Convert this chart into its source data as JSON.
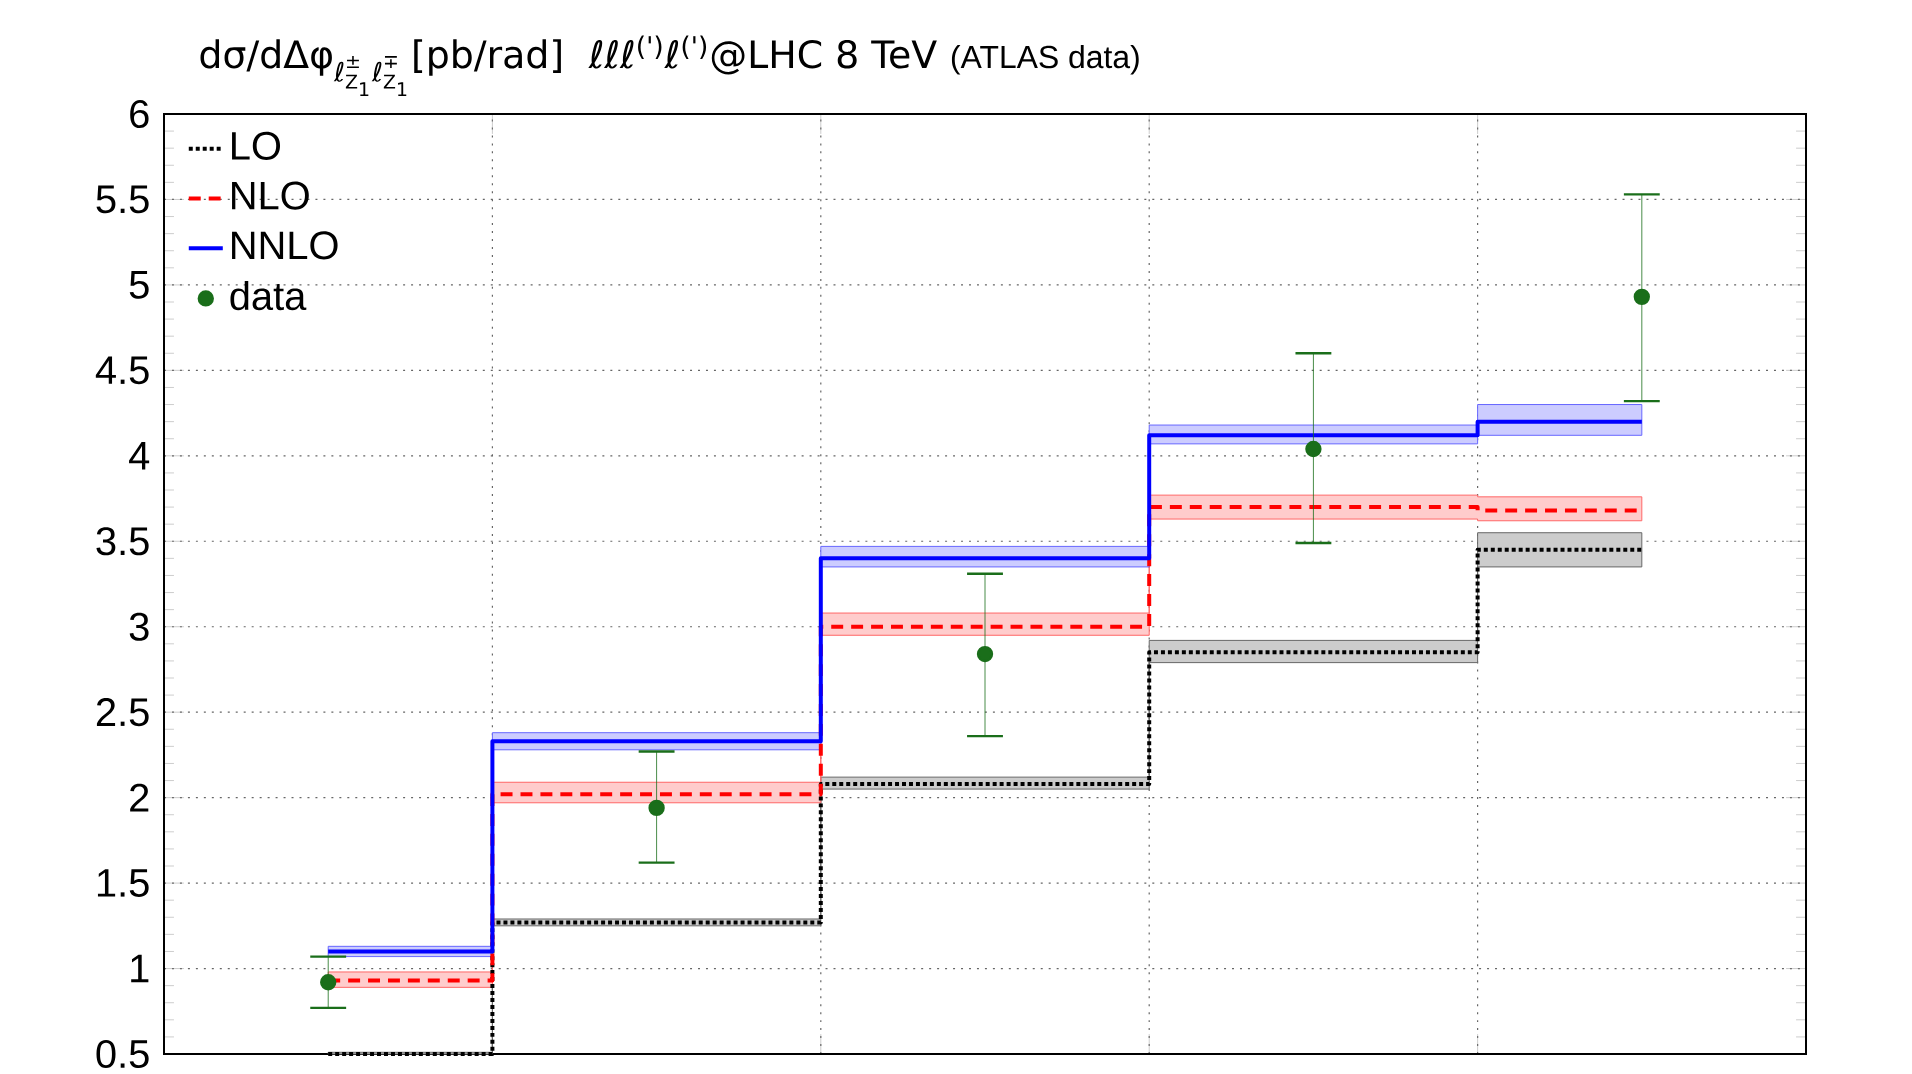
{
  "chart_data": {
    "type": "step",
    "title": "\\text{dσ/dΔφ}_{\\text{ℓ}^{\\text{±}}_{\\text{Z}_{\\text{1}}}\\text{ℓ}^{\\text{∓}}_{\\text{Z}_{\\text{1}}}}\\text{[pb/rad]}",
    "subtitle": "ℓℓℓ$^{(')}$ℓ$^{(')}$@LHC 8 TeV",
    "annotations": [
      "(ATLAS data)"
    ],
    "categories": [
      null,
      null,
      null,
      null,
      null
    ],
    "ylim": [
      0.5,
      6
    ],
    "yticks": [
      0.5,
      1,
      1.5,
      2,
      2.5,
      3,
      3.5,
      4,
      4.5,
      5,
      5.5,
      6
    ],
    "grid": true,
    "legend": "top left",
    "series": [
      {
        "name": "LO",
        "color": "#000000",
        "line_style": "dotted",
        "values": [
          0.5,
          1.27,
          2.08,
          2.85,
          3.45
        ],
        "lower": [
          0.5,
          1.25,
          2.05,
          2.79,
          3.35
        ],
        "upper": [
          0.51,
          1.29,
          2.12,
          2.92,
          3.55
        ]
      },
      {
        "name": "NLO",
        "color": "#ff0000",
        "line_style": "dashed",
        "values": [
          0.93,
          2.02,
          3.0,
          3.7,
          3.68
        ],
        "lower": [
          0.89,
          1.97,
          2.95,
          3.63,
          3.62
        ],
        "upper": [
          0.98,
          2.09,
          3.08,
          3.77,
          3.76
        ]
      },
      {
        "name": "NNLO",
        "color": "#0000ff",
        "line_style": "solid",
        "values": [
          1.1,
          2.33,
          3.4,
          4.12,
          4.2
        ],
        "lower": [
          1.07,
          2.28,
          3.35,
          4.07,
          4.12
        ],
        "upper": [
          1.13,
          2.38,
          3.47,
          4.18,
          4.3
        ]
      },
      {
        "name": "data",
        "type": "scatter",
        "color": "#1a6e1a",
        "marker": "circle",
        "values": [
          0.92,
          1.94,
          2.84,
          4.04,
          4.93
        ],
        "errors": [
          [
            0.77,
            1.07
          ],
          [
            1.62,
            2.27
          ],
          [
            2.36,
            3.31
          ],
          [
            3.49,
            4.6
          ],
          [
            4.32,
            5.53
          ]
        ]
      }
    ]
  }
}
